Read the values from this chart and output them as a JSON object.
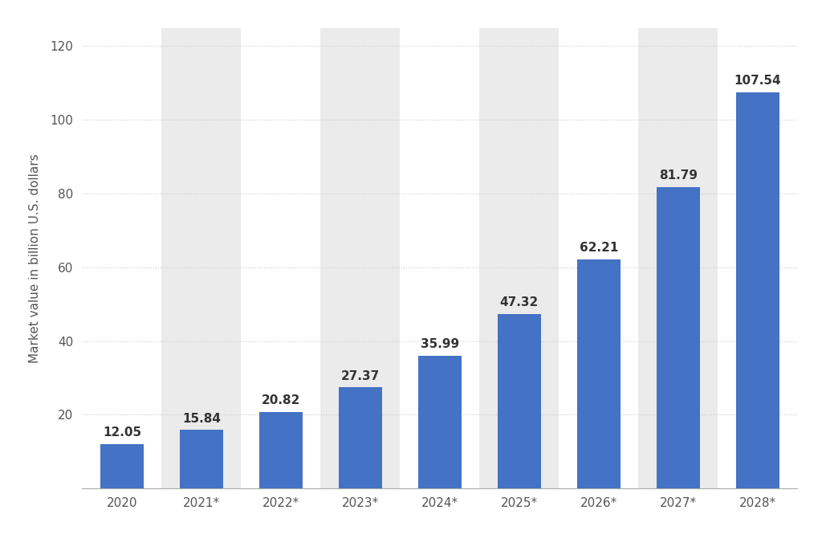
{
  "categories": [
    "2020",
    "2021*",
    "2022*",
    "2023*",
    "2024*",
    "2025*",
    "2026*",
    "2027*",
    "2028*"
  ],
  "values": [
    12.05,
    15.84,
    20.82,
    27.37,
    35.99,
    47.32,
    62.21,
    81.79,
    107.54
  ],
  "bar_color": "#4472c4",
  "background_color": "#ffffff",
  "plot_bg_color": "#ffffff",
  "col_band_color": "#ebebeb",
  "ylabel": "Market value in billion U.S. dollars",
  "ylim": [
    0,
    125
  ],
  "yticks": [
    0,
    20,
    40,
    60,
    80,
    100,
    120
  ],
  "grid_color": "#cccccc",
  "label_fontsize": 11,
  "tick_fontsize": 11,
  "value_label_fontsize": 11,
  "bar_width": 0.55
}
